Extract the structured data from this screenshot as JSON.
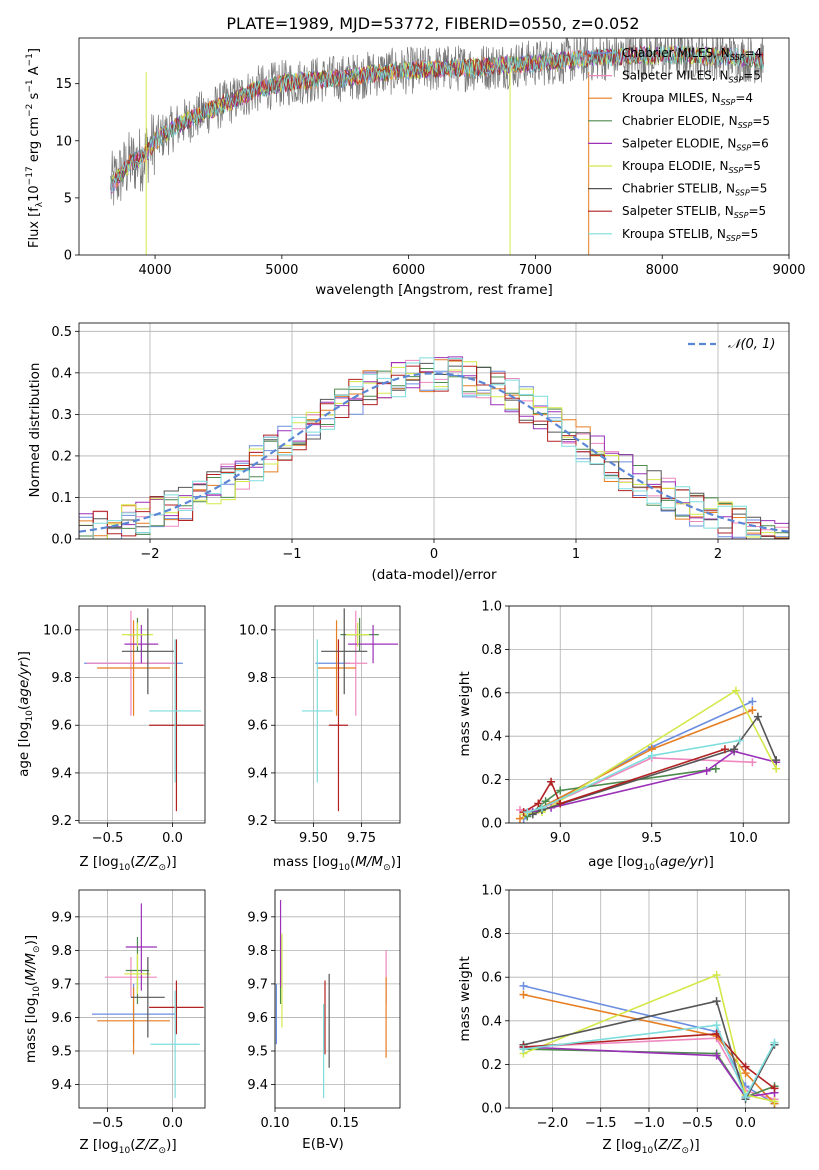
{
  "title": "PLATE=1989, MJD=53772, FIBERID=0550, z=0.052",
  "colors": {
    "Chabrier MILES": "#6c8ee0",
    "Salpeter MILES": "#ee88c0",
    "Kroupa MILES": "#e67e22",
    "Chabrier ELODIE": "#4d8a4d",
    "Salpeter ELODIE": "#9b30b8",
    "Kroupa ELODIE": "#d4e84a",
    "Chabrier STELIB": "#555555",
    "Salpeter STELIB": "#b22222",
    "Kroupa STELIB": "#7fdddd"
  },
  "chart_data": [
    {
      "id": "spectrum",
      "type": "line",
      "xlabel": "wavelength [Angstrom, rest frame]",
      "ylabel": "Flux [f_λ10^-17 erg cm^-2 s^-1 A^-1]",
      "xlim": [
        3400,
        9000
      ],
      "ylim": [
        0,
        19
      ],
      "xticks": [
        4000,
        5000,
        6000,
        7000,
        8000,
        9000
      ],
      "yticks": [
        0,
        5,
        10,
        15
      ],
      "legend": {
        "placement": "top-right",
        "entries": [
          {
            "name": "Chabrier MILES",
            "nssp": "4"
          },
          {
            "name": "Salpeter MILES",
            "nssp": "5"
          },
          {
            "name": "Kroupa MILES",
            "nssp": "4"
          },
          {
            "name": "Chabrier ELODIE",
            "nssp": "5"
          },
          {
            "name": "Salpeter ELODIE",
            "nssp": "6"
          },
          {
            "name": "Kroupa ELODIE",
            "nssp": "5"
          },
          {
            "name": "Chabrier STELIB",
            "nssp": "5"
          },
          {
            "name": "Salpeter STELIB",
            "nssp": "5"
          },
          {
            "name": "Kroupa STELIB",
            "nssp": "5"
          }
        ]
      },
      "envelope": [
        [
          3650,
          6
        ],
        [
          3800,
          8
        ],
        [
          3900,
          8.5
        ],
        [
          4000,
          10
        ],
        [
          4200,
          11.5
        ],
        [
          4500,
          13
        ],
        [
          4800,
          14.5
        ],
        [
          5000,
          15
        ],
        [
          5200,
          15.3
        ],
        [
          5500,
          15.5
        ],
        [
          5800,
          16
        ],
        [
          6200,
          16.3
        ],
        [
          6500,
          16.4
        ],
        [
          7000,
          16.8
        ],
        [
          7400,
          17.2
        ],
        [
          7800,
          17.5
        ],
        [
          8200,
          17.5
        ],
        [
          8500,
          17.4
        ],
        [
          8800,
          17
        ]
      ]
    },
    {
      "id": "residuals",
      "type": "step",
      "xlabel": "(data-model)/error",
      "ylabel": "Normed distribution",
      "xlim": [
        -2.5,
        2.5
      ],
      "ylim": [
        0,
        0.52
      ],
      "xticks": [
        -2,
        -1,
        0,
        1,
        2
      ],
      "yticks": [
        0.0,
        0.1,
        0.2,
        0.3,
        0.4,
        0.5
      ],
      "legend": {
        "placement": "top-right",
        "label": "N(0,1)"
      }
    },
    {
      "id": "age-z",
      "type": "errorbar",
      "xlabel": "Z [log10(Z/Z⊙)]",
      "ylabel": "age  [log10(age/yr)]",
      "xlim": [
        -0.72,
        0.25
      ],
      "ylim": [
        9.19,
        10.1
      ],
      "xticks": [
        -0.5,
        0.0
      ],
      "yticks": [
        9.2,
        9.4,
        9.6,
        9.8,
        10.0
      ],
      "points": [
        {
          "model": "Chabrier MILES",
          "x": -0.3,
          "y": 9.86,
          "xerr": 0.38,
          "yerr": 0.0
        },
        {
          "model": "Salpeter MILES",
          "x": -0.32,
          "y": 9.86,
          "xerr": 0.34,
          "yerr": 0.22
        },
        {
          "model": "Kroupa MILES",
          "x": -0.3,
          "y": 9.84,
          "xerr": 0.28,
          "yerr": 0.2
        },
        {
          "model": "Chabrier ELODIE",
          "x": -0.27,
          "y": 9.98,
          "xerr": 0.07,
          "yerr": 0.07
        },
        {
          "model": "Salpeter ELODIE",
          "x": -0.24,
          "y": 9.94,
          "xerr": 0.13,
          "yerr": 0.08
        },
        {
          "model": "Kroupa ELODIE",
          "x": -0.27,
          "y": 9.98,
          "xerr": 0.12,
          "yerr": 0.05
        },
        {
          "model": "Chabrier STELIB",
          "x": -0.19,
          "y": 9.91,
          "xerr": 0.2,
          "yerr": 0.18
        },
        {
          "model": "Salpeter STELIB",
          "x": 0.03,
          "y": 9.6,
          "xerr": 0.21,
          "yerr": 0.36
        },
        {
          "model": "Kroupa STELIB",
          "x": 0.02,
          "y": 9.66,
          "xerr": 0.2,
          "yerr": 0.3
        }
      ]
    },
    {
      "id": "age-mass",
      "type": "errorbar",
      "xlabel": "mass [log10(M/M⊙)]",
      "ylabel": "",
      "xlim": [
        9.3,
        9.95
      ],
      "ylim": [
        9.19,
        10.1
      ],
      "xticks": [
        9.5,
        9.75
      ],
      "yticks": [
        9.2,
        9.4,
        9.6,
        9.8,
        10.0
      ],
      "points": [
        {
          "model": "Chabrier MILES",
          "x": 9.6,
          "y": 9.86,
          "xerr": 0.09,
          "yerr": 0.0
        },
        {
          "model": "Salpeter MILES",
          "x": 9.72,
          "y": 9.86,
          "xerr": 0.06,
          "yerr": 0.22
        },
        {
          "model": "Kroupa MILES",
          "x": 9.62,
          "y": 9.84,
          "xerr": 0.1,
          "yerr": 0.2
        },
        {
          "model": "Chabrier ELODIE",
          "x": 9.74,
          "y": 9.98,
          "xerr": 0.1,
          "yerr": 0.07
        },
        {
          "model": "Salpeter ELODIE",
          "x": 9.81,
          "y": 9.94,
          "xerr": 0.13,
          "yerr": 0.08
        },
        {
          "model": "Kroupa ELODIE",
          "x": 9.73,
          "y": 9.98,
          "xerr": 0.06,
          "yerr": 0.05
        },
        {
          "model": "Chabrier STELIB",
          "x": 9.66,
          "y": 9.91,
          "xerr": 0.12,
          "yerr": 0.18
        },
        {
          "model": "Salpeter STELIB",
          "x": 9.63,
          "y": 9.6,
          "xerr": 0.05,
          "yerr": 0.36
        },
        {
          "model": "Kroupa STELIB",
          "x": 9.52,
          "y": 9.66,
          "xerr": 0.08,
          "yerr": 0.3
        }
      ]
    },
    {
      "id": "mw-age",
      "type": "line",
      "xlabel": "age  [log10(age/yr)]",
      "ylabel": "mass weight",
      "xlim": [
        8.72,
        10.25
      ],
      "ylim": [
        0,
        1.0
      ],
      "xticks": [
        9.0,
        9.5,
        10.0
      ],
      "yticks": [
        0.0,
        0.2,
        0.4,
        0.6,
        0.8,
        1.0
      ],
      "series": [
        {
          "model": "Chabrier MILES",
          "x": [
            8.8,
            9.5,
            10.05
          ],
          "y": [
            0.02,
            0.35,
            0.56
          ]
        },
        {
          "model": "Salpeter MILES",
          "x": [
            8.78,
            8.88,
            9.5,
            10.05
          ],
          "y": [
            0.06,
            0.06,
            0.3,
            0.28
          ]
        },
        {
          "model": "Kroupa MILES",
          "x": [
            8.78,
            9.5,
            10.05
          ],
          "y": [
            0.02,
            0.34,
            0.52
          ]
        },
        {
          "model": "Chabrier ELODIE",
          "x": [
            8.82,
            8.92,
            9.0,
            9.85
          ],
          "y": [
            0.03,
            0.1,
            0.15,
            0.25
          ]
        },
        {
          "model": "Salpeter ELODIE",
          "x": [
            8.85,
            8.95,
            9.8,
            9.95,
            10.18
          ],
          "y": [
            0.05,
            0.07,
            0.24,
            0.33,
            0.28
          ]
        },
        {
          "model": "Kroupa ELODIE",
          "x": [
            8.8,
            8.9,
            9.96,
            10.18
          ],
          "y": [
            0.04,
            0.05,
            0.61,
            0.25
          ]
        },
        {
          "model": "Chabrier STELIB",
          "x": [
            8.85,
            8.9,
            9.95,
            10.08,
            10.18
          ],
          "y": [
            0.04,
            0.06,
            0.34,
            0.49,
            0.29
          ]
        },
        {
          "model": "Salpeter STELIB",
          "x": [
            8.8,
            8.88,
            8.95,
            9.0,
            9.9
          ],
          "y": [
            0.05,
            0.09,
            0.19,
            0.09,
            0.34
          ]
        },
        {
          "model": "Kroupa STELIB",
          "x": [
            8.82,
            8.9,
            9.5,
            9.98
          ],
          "y": [
            0.05,
            0.07,
            0.31,
            0.38
          ]
        }
      ]
    },
    {
      "id": "mass-z",
      "type": "errorbar",
      "xlabel": "Z [log10(Z/Z⊙)]",
      "ylabel": "mass [log10(M/M⊙)]",
      "xlim": [
        -0.72,
        0.25
      ],
      "ylim": [
        9.33,
        9.98
      ],
      "xticks": [
        -0.5,
        0.0
      ],
      "yticks": [
        9.4,
        9.5,
        9.6,
        9.7,
        9.8,
        9.9
      ],
      "points": [
        {
          "model": "Chabrier MILES",
          "x": -0.3,
          "y": 9.61,
          "xerr": 0.32,
          "yerr": 0.09
        },
        {
          "model": "Salpeter MILES",
          "x": -0.32,
          "y": 9.72,
          "xerr": 0.2,
          "yerr": 0.06
        },
        {
          "model": "Kroupa MILES",
          "x": -0.3,
          "y": 9.59,
          "xerr": 0.28,
          "yerr": 0.1
        },
        {
          "model": "Chabrier ELODIE",
          "x": -0.27,
          "y": 9.74,
          "xerr": 0.09,
          "yerr": 0.1
        },
        {
          "model": "Salpeter ELODIE",
          "x": -0.24,
          "y": 9.81,
          "xerr": 0.12,
          "yerr": 0.13
        },
        {
          "model": "Kroupa ELODIE",
          "x": -0.27,
          "y": 9.73,
          "xerr": 0.1,
          "yerr": 0.06
        },
        {
          "model": "Chabrier STELIB",
          "x": -0.19,
          "y": 9.66,
          "xerr": 0.13,
          "yerr": 0.12
        },
        {
          "model": "Salpeter STELIB",
          "x": 0.03,
          "y": 9.63,
          "xerr": 0.21,
          "yerr": 0.08
        },
        {
          "model": "Kroupa STELIB",
          "x": 0.02,
          "y": 9.52,
          "xerr": 0.19,
          "yerr": 0.16
        }
      ]
    },
    {
      "id": "mass-ebv",
      "type": "errorbar",
      "xlabel": "E(B-V)",
      "ylabel": "",
      "xlim": [
        0.1,
        0.19
      ],
      "ylim": [
        9.33,
        9.98
      ],
      "xticks": [
        0.1,
        0.15
      ],
      "yticks": [
        9.4,
        9.5,
        9.6,
        9.7,
        9.8,
        9.9
      ],
      "points": [
        {
          "model": "Chabrier MILES",
          "x": 0.101,
          "y": 9.61,
          "xerr": 0.0,
          "yerr": 0.09
        },
        {
          "model": "Salpeter MILES",
          "x": 0.18,
          "y": 9.72,
          "xerr": 0.0,
          "yerr": 0.08
        },
        {
          "model": "Kroupa MILES",
          "x": 0.18,
          "y": 9.6,
          "xerr": 0.0,
          "yerr": 0.12
        },
        {
          "model": "Chabrier ELODIE",
          "x": 0.104,
          "y": 9.74,
          "xerr": 0.0,
          "yerr": 0.1
        },
        {
          "model": "Salpeter ELODIE",
          "x": 0.104,
          "y": 9.82,
          "xerr": 0.0,
          "yerr": 0.13
        },
        {
          "model": "Kroupa ELODIE",
          "x": 0.105,
          "y": 9.71,
          "xerr": 0.0,
          "yerr": 0.14
        },
        {
          "model": "Chabrier STELIB",
          "x": 0.139,
          "y": 9.59,
          "xerr": 0.0,
          "yerr": 0.14
        },
        {
          "model": "Salpeter STELIB",
          "x": 0.136,
          "y": 9.6,
          "xerr": 0.0,
          "yerr": 0.11
        },
        {
          "model": "Kroupa STELIB",
          "x": 0.135,
          "y": 9.5,
          "xerr": 0.0,
          "yerr": 0.14
        }
      ]
    },
    {
      "id": "mw-z",
      "type": "line",
      "xlabel": "Z [log10(Z/Z⊙)]",
      "ylabel": "mass weight",
      "xlim": [
        -2.45,
        0.45
      ],
      "ylim": [
        0,
        1.0
      ],
      "xticks": [
        -2.0,
        -1.5,
        -1.0,
        -0.5,
        0.0
      ],
      "yticks": [
        0.0,
        0.2,
        0.4,
        0.6,
        0.8,
        1.0
      ],
      "series": [
        {
          "model": "Chabrier MILES",
          "x": [
            -2.3,
            -0.3,
            0.0,
            0.3
          ],
          "y": [
            0.56,
            0.35,
            0.1,
            0.02
          ]
        },
        {
          "model": "Salpeter MILES",
          "x": [
            -2.3,
            -0.3,
            0.0,
            0.3
          ],
          "y": [
            0.28,
            0.32,
            0.08,
            0.04
          ]
        },
        {
          "model": "Kroupa MILES",
          "x": [
            -2.3,
            -0.3,
            0.0,
            0.3
          ],
          "y": [
            0.52,
            0.33,
            0.16,
            0.02
          ]
        },
        {
          "model": "Chabrier ELODIE",
          "x": [
            -2.3,
            -0.3,
            0.0,
            0.3
          ],
          "y": [
            0.27,
            0.25,
            0.05,
            0.1
          ]
        },
        {
          "model": "Salpeter ELODIE",
          "x": [
            -2.3,
            -0.3,
            0.0,
            0.3
          ],
          "y": [
            0.28,
            0.24,
            0.05,
            0.07
          ]
        },
        {
          "model": "Kroupa ELODIE",
          "x": [
            -2.3,
            -0.3,
            0.0,
            0.3
          ],
          "y": [
            0.25,
            0.61,
            0.06,
            0.03
          ]
        },
        {
          "model": "Chabrier STELIB",
          "x": [
            -2.3,
            -0.3,
            0.0,
            0.3
          ],
          "y": [
            0.29,
            0.49,
            0.04,
            0.29
          ]
        },
        {
          "model": "Salpeter STELIB",
          "x": [
            -2.3,
            -0.3,
            0.0,
            0.3
          ],
          "y": [
            0.28,
            0.34,
            0.19,
            0.09
          ]
        },
        {
          "model": "Kroupa STELIB",
          "x": [
            -2.3,
            -0.3,
            0.0,
            0.3
          ],
          "y": [
            0.27,
            0.38,
            0.05,
            0.3
          ]
        }
      ]
    }
  ]
}
